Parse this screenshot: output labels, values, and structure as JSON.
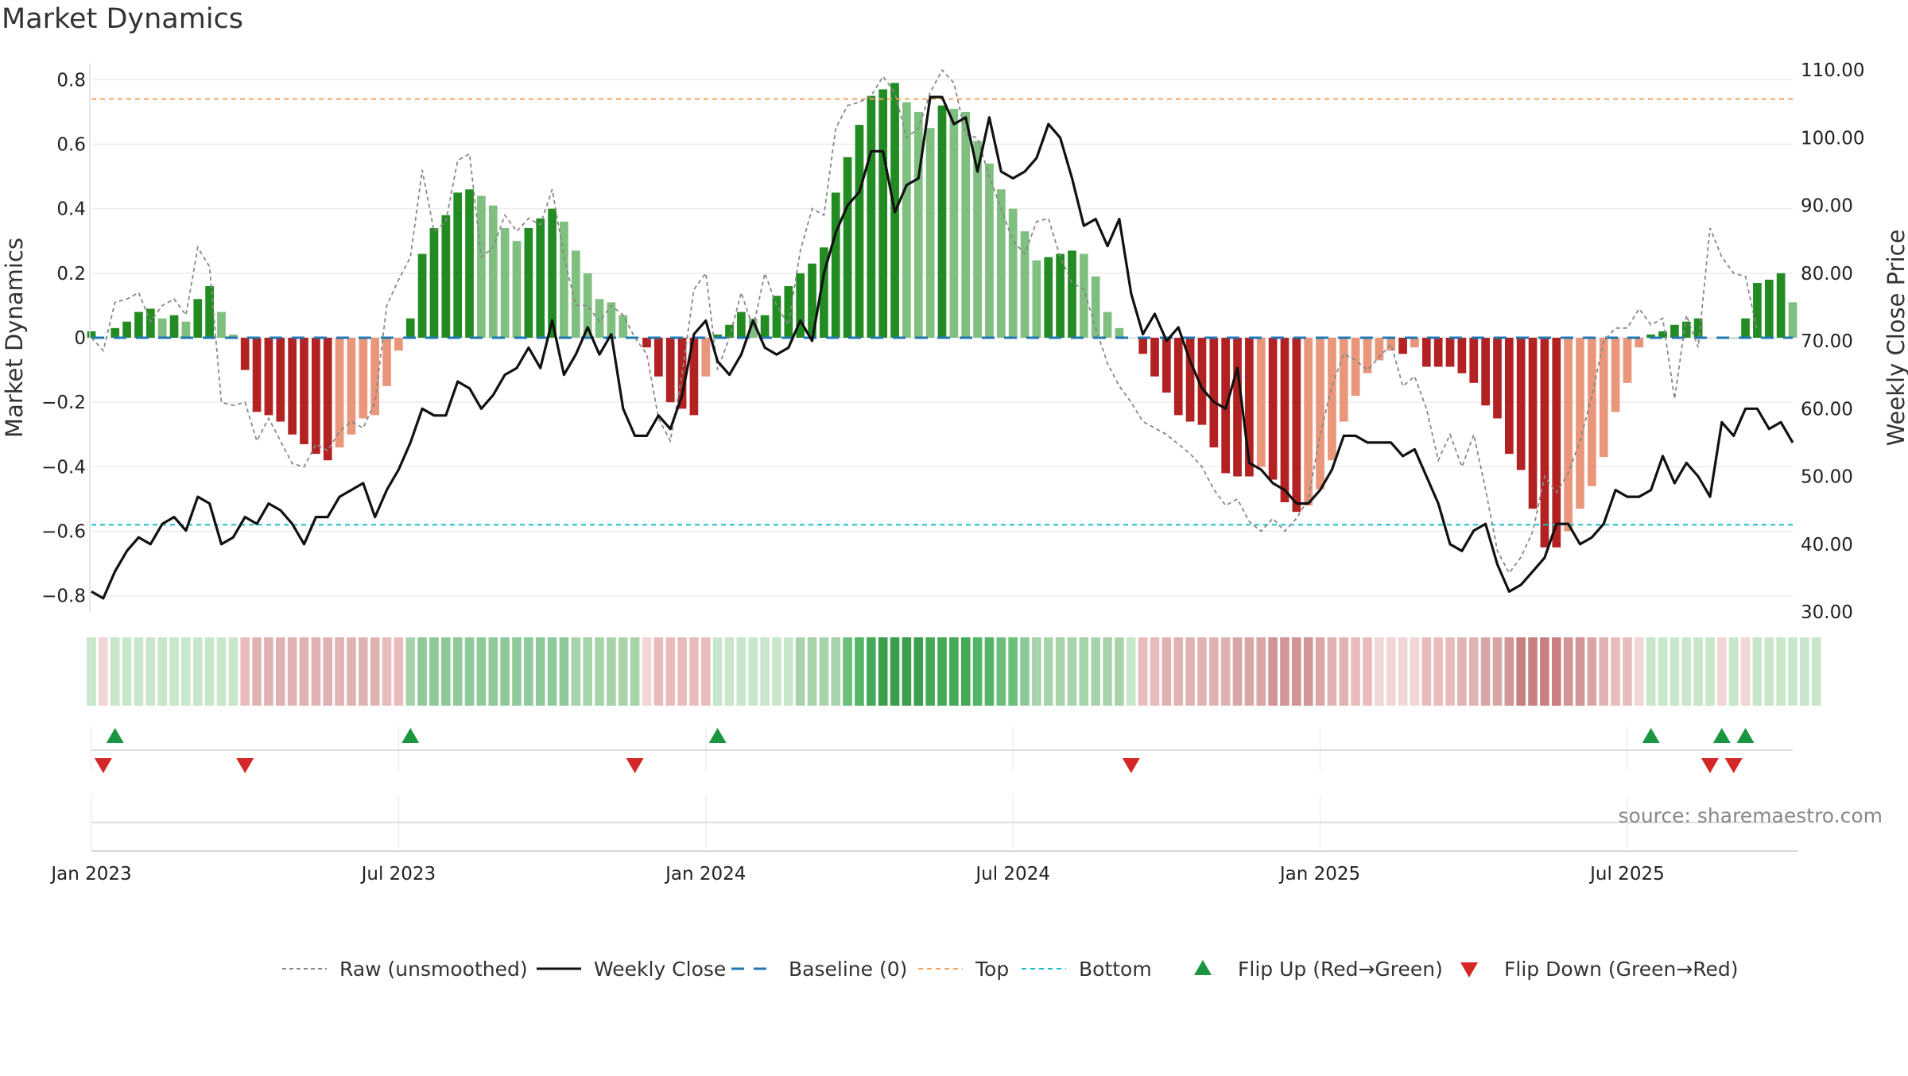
{
  "chart_data": {
    "type": "bar",
    "title": "Market Dynamics",
    "ylabel_left": "Market Dynamics",
    "ylabel_right": "Weekly Close Price",
    "source": "source: sharemaestro.com",
    "ylim_left": [
      -0.85,
      0.85
    ],
    "ylim_right": [
      30,
      110
    ],
    "y_ticks_left": [
      {
        "v": 0.8,
        "label": "0.8"
      },
      {
        "v": 0.6,
        "label": "0.6"
      },
      {
        "v": 0.4,
        "label": "0.4"
      },
      {
        "v": 0.2,
        "label": "0.2"
      },
      {
        "v": 0,
        "label": "0"
      },
      {
        "v": -0.2,
        "label": "−0.2"
      },
      {
        "v": -0.4,
        "label": "−0.4"
      },
      {
        "v": -0.6,
        "label": "−0.6"
      },
      {
        "v": -0.8,
        "label": "−0.8"
      }
    ],
    "y_ticks_right": [
      {
        "v": 110,
        "label": "110.00"
      },
      {
        "v": 100,
        "label": "100.00"
      },
      {
        "v": 90,
        "label": "90.00"
      },
      {
        "v": 80,
        "label": "80.00"
      },
      {
        "v": 70,
        "label": "70.00"
      },
      {
        "v": 60,
        "label": "60.00"
      },
      {
        "v": 50,
        "label": "50.00"
      },
      {
        "v": 40,
        "label": "40.00"
      },
      {
        "v": 30,
        "label": "30.00"
      }
    ],
    "x_ticks": [
      {
        "week": 1,
        "label": "Jan 2023"
      },
      {
        "week": 27,
        "label": "Jul 2023"
      },
      {
        "week": 53,
        "label": "Jan 2024"
      },
      {
        "week": 79,
        "label": "Jul 2024"
      },
      {
        "week": 105,
        "label": "Jan 2025"
      },
      {
        "week": 131,
        "label": "Jul 2025"
      }
    ],
    "top_level": 0.74,
    "bottom_level": -0.58,
    "baseline": 0,
    "colors": {
      "pos_strong": "#228b22",
      "pos_weak": "#7fbf7f",
      "neg_strong": "#b22222",
      "neg_weak": "#e9967a",
      "raw": "#888888",
      "close": "#111111",
      "baseline": "#1f77b4",
      "top": "#f4a460",
      "bottom": "#17becf",
      "flip_up": "#1a9641",
      "flip_down": "#d62728"
    },
    "momentum": [
      0.02,
      0.0,
      0.03,
      0.05,
      0.08,
      0.09,
      0.06,
      0.07,
      0.05,
      0.12,
      0.16,
      0.08,
      0.01,
      -0.1,
      -0.23,
      -0.24,
      -0.26,
      -0.3,
      -0.33,
      -0.36,
      -0.38,
      -0.34,
      -0.3,
      -0.25,
      -0.24,
      -0.15,
      -0.04,
      0.06,
      0.26,
      0.34,
      0.38,
      0.45,
      0.46,
      0.44,
      0.41,
      0.34,
      0.3,
      0.34,
      0.37,
      0.4,
      0.36,
      0.27,
      0.2,
      0.12,
      0.11,
      0.07,
      0.0,
      -0.03,
      -0.12,
      -0.2,
      -0.22,
      -0.24,
      -0.12,
      0.01,
      0.04,
      0.08,
      0.06,
      0.07,
      0.13,
      0.16,
      0.2,
      0.23,
      0.28,
      0.45,
      0.56,
      0.66,
      0.75,
      0.77,
      0.79,
      0.73,
      0.7,
      0.65,
      0.72,
      0.71,
      0.7,
      0.61,
      0.54,
      0.46,
      0.4,
      0.33,
      0.24,
      0.25,
      0.26,
      0.27,
      0.26,
      0.19,
      0.08,
      0.03,
      0.0,
      -0.05,
      -0.12,
      -0.17,
      -0.24,
      -0.26,
      -0.27,
      -0.34,
      -0.42,
      -0.43,
      -0.43,
      -0.4,
      -0.44,
      -0.51,
      -0.54,
      -0.52,
      -0.47,
      -0.38,
      -0.26,
      -0.18,
      -0.11,
      -0.07,
      -0.04,
      -0.05,
      -0.03,
      -0.09,
      -0.09,
      -0.09,
      -0.11,
      -0.14,
      -0.21,
      -0.25,
      -0.36,
      -0.41,
      -0.53,
      -0.65,
      -0.65,
      -0.6,
      -0.53,
      -0.46,
      -0.37,
      -0.23,
      -0.14,
      -0.03,
      0.01,
      0.02,
      0.04,
      0.05,
      0.06,
      0.0,
      0.0,
      0.0,
      0.06,
      0.17,
      0.18,
      0.2,
      0.11
    ],
    "raw": [
      0.0,
      -0.04,
      0.11,
      0.12,
      0.14,
      0.05,
      0.1,
      0.12,
      0.07,
      0.28,
      0.22,
      -0.2,
      -0.21,
      -0.2,
      -0.32,
      -0.25,
      -0.32,
      -0.39,
      -0.4,
      -0.33,
      -0.35,
      -0.29,
      -0.26,
      -0.28,
      -0.2,
      0.1,
      0.18,
      0.25,
      0.52,
      0.33,
      0.36,
      0.55,
      0.57,
      0.25,
      0.28,
      0.38,
      0.33,
      0.37,
      0.35,
      0.46,
      0.25,
      0.1,
      0.1,
      0.05,
      0.1,
      0.07,
      0.0,
      -0.05,
      -0.25,
      -0.32,
      -0.11,
      0.15,
      0.2,
      -0.1,
      0.0,
      0.14,
      0.03,
      0.2,
      0.1,
      0.04,
      0.27,
      0.4,
      0.38,
      0.65,
      0.72,
      0.73,
      0.75,
      0.81,
      0.76,
      0.62,
      0.65,
      0.76,
      0.83,
      0.79,
      0.63,
      0.62,
      0.5,
      0.4,
      0.3,
      0.26,
      0.36,
      0.37,
      0.25,
      0.17,
      0.15,
      0.03,
      -0.08,
      -0.15,
      -0.2,
      -0.26,
      -0.28,
      -0.3,
      -0.33,
      -0.36,
      -0.4,
      -0.47,
      -0.52,
      -0.5,
      -0.57,
      -0.6,
      -0.56,
      -0.6,
      -0.56,
      -0.5,
      -0.3,
      -0.15,
      -0.05,
      -0.07,
      -0.1,
      -0.06,
      -0.02,
      -0.15,
      -0.12,
      -0.22,
      -0.38,
      -0.3,
      -0.4,
      -0.3,
      -0.47,
      -0.66,
      -0.73,
      -0.68,
      -0.6,
      -0.43,
      -0.48,
      -0.42,
      -0.32,
      -0.18,
      -0.01,
      0.03,
      0.03,
      0.09,
      0.04,
      0.06,
      -0.19,
      0.07,
      -0.03,
      0.34,
      0.25,
      0.2,
      0.19,
      0.02
    ],
    "close": [
      33,
      32,
      36,
      39,
      41,
      40,
      43,
      44,
      42,
      47,
      46,
      40,
      41,
      44,
      43,
      46,
      45,
      43,
      40,
      44,
      44,
      47,
      48,
      49,
      44,
      48,
      51,
      55,
      60,
      59,
      59,
      64,
      63,
      60,
      62,
      65,
      66,
      69,
      66,
      73,
      65,
      68,
      72,
      68,
      71,
      60,
      56,
      56,
      59,
      57,
      62,
      71,
      73,
      67,
      65,
      68,
      73,
      69,
      68,
      69,
      73,
      70,
      80,
      86,
      90,
      92,
      98,
      98,
      89,
      93,
      94,
      106,
      106,
      102,
      103,
      95,
      103,
      95,
      94,
      95,
      97,
      102,
      100,
      94,
      87,
      88,
      84,
      88,
      77,
      71,
      74,
      70,
      72,
      67,
      63,
      61,
      60,
      66,
      52,
      51,
      49,
      48,
      46,
      46,
      48,
      51,
      56,
      56,
      55,
      55,
      55,
      53,
      54,
      50,
      46,
      40,
      39,
      42,
      43,
      37,
      33,
      34,
      36,
      38,
      43,
      43,
      40,
      41,
      43,
      48,
      47,
      47,
      48,
      53,
      49,
      52,
      50,
      47,
      58,
      56,
      60,
      60,
      57,
      58,
      55
    ],
    "regime_colors": [
      "#c8e6c9",
      "#f0d6d6",
      "#c8e6c9",
      "#c8e6c9",
      "#c8e6c9",
      "#c8e6c9",
      "#c8e6c9",
      "#c8e6c9",
      "#c8e6c9",
      "#c8e6c9",
      "#c8e6c9",
      "#c8e6c9",
      "#c8e6c9",
      "#e8bcbc",
      "#e0b3b3",
      "#e0b3b3",
      "#e0b3b3",
      "#e0b3b3",
      "#e0b3b3",
      "#e0b3b3",
      "#e0b3b3",
      "#e0b3b3",
      "#e0b3b3",
      "#e0b3b3",
      "#e0b3b3",
      "#e8bcbc",
      "#e8bcbc",
      "#a7d3a9",
      "#8ec99a",
      "#8ec99a",
      "#8ec99a",
      "#8ec99a",
      "#8ec99a",
      "#8ec99a",
      "#8ec99a",
      "#8ec99a",
      "#8ec99a",
      "#8ec99a",
      "#8ec99a",
      "#8ec99a",
      "#8ec99a",
      "#a7d3a9",
      "#a7d3a9",
      "#a7d3a9",
      "#a7d3a9",
      "#a7d3a9",
      "#a7d3a9",
      "#f0d6d6",
      "#e8bcbc",
      "#e8bcbc",
      "#e8bcbc",
      "#e8bcbc",
      "#e8bcbc",
      "#c8e6c9",
      "#c8e6c9",
      "#c8e6c9",
      "#c8e6c9",
      "#c8e6c9",
      "#c8e6c9",
      "#c8e6c9",
      "#a7d3a9",
      "#a7d3a9",
      "#a7d3a9",
      "#a7d3a9",
      "#6cbf7a",
      "#55b567",
      "#45aa58",
      "#3a9e4c",
      "#3a9e4c",
      "#3a9e4c",
      "#3a9e4c",
      "#45aa58",
      "#45aa58",
      "#45aa58",
      "#45aa58",
      "#55b567",
      "#55b567",
      "#6cbf7a",
      "#6cbf7a",
      "#8ec99a",
      "#a7d3a9",
      "#a7d3a9",
      "#a7d3a9",
      "#a7d3a9",
      "#a7d3a9",
      "#a7d3a9",
      "#a7d3a9",
      "#a7d3a9",
      "#c8e6c9",
      "#e8bcbc",
      "#e8bcbc",
      "#e0b3b3",
      "#e0b3b3",
      "#e0b3b3",
      "#e0b3b3",
      "#e0b3b3",
      "#e0b3b3",
      "#d9a6a6",
      "#d9a6a6",
      "#d9a6a6",
      "#d29494",
      "#d29494",
      "#d29494",
      "#d29494",
      "#d9a6a6",
      "#e0b3b3",
      "#e0b3b3",
      "#e8bcbc",
      "#e8bcbc",
      "#f0d6d6",
      "#f0d6d6",
      "#f0d6d6",
      "#f0d6d6",
      "#e8bcbc",
      "#e8bcbc",
      "#e8bcbc",
      "#e0b3b3",
      "#e0b3b3",
      "#d9a6a6",
      "#d9a6a6",
      "#d29494",
      "#c97f7f",
      "#c97f7f",
      "#c97f7f",
      "#c97f7f",
      "#d29494",
      "#d29494",
      "#d9a6a6",
      "#e0b3b3",
      "#e8bcbc",
      "#e8bcbc",
      "#f0d6d6",
      "#c8e6c9",
      "#c8e6c9",
      "#c8e6c9",
      "#c8e6c9",
      "#c8e6c9",
      "#c8e6c9",
      "#f0d6d6",
      "#c8e6c9",
      "#f0d6d6",
      "#c8e6c9",
      "#c8e6c9",
      "#c8e6c9",
      "#c8e6c9",
      "#c8e6c9",
      "#c8e6c9"
    ],
    "flips_up": [
      3,
      28,
      54,
      133,
      139,
      141
    ],
    "flips_down": [
      2,
      14,
      47,
      89,
      138,
      140
    ],
    "legend": [
      {
        "key": "raw",
        "label": "Raw (unsmoothed)"
      },
      {
        "key": "close",
        "label": "Weekly Close"
      },
      {
        "key": "baseline",
        "label": "Baseline (0)"
      },
      {
        "key": "top",
        "label": "Top"
      },
      {
        "key": "bottom",
        "label": "Bottom"
      },
      {
        "key": "flip_up",
        "label": "Flip Up (Red→Green)"
      },
      {
        "key": "flip_down",
        "label": "Flip Down (Green→Red)"
      }
    ]
  }
}
